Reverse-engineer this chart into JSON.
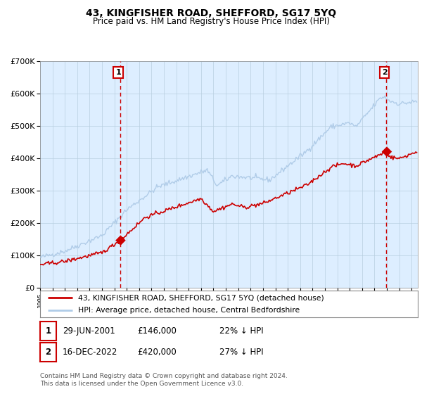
{
  "title1": "43, KINGFISHER ROAD, SHEFFORD, SG17 5YQ",
  "title2": "Price paid vs. HM Land Registry's House Price Index (HPI)",
  "legend_line1": "43, KINGFISHER ROAD, SHEFFORD, SG17 5YQ (detached house)",
  "legend_line2": "HPI: Average price, detached house, Central Bedfordshire",
  "annotation1_date": "29-JUN-2001",
  "annotation1_price": "£146,000",
  "annotation1_hpi": "22% ↓ HPI",
  "annotation1_year": 2001.46,
  "annotation2_date": "16-DEC-2022",
  "annotation2_price": "£420,000",
  "annotation2_hpi": "27% ↓ HPI",
  "annotation2_year": 2022.96,
  "footer1": "Contains HM Land Registry data © Crown copyright and database right 2024.",
  "footer2": "This data is licensed under the Open Government Licence v3.0.",
  "hpi_color": "#b0cce8",
  "price_color": "#cc0000",
  "bg_color": "#ddeeff",
  "grid_color": "#b8cfe0",
  "vline_color": "#cc0000",
  "ylim": [
    0,
    700000
  ],
  "xlim_start": 1995.0,
  "xlim_end": 2025.5
}
